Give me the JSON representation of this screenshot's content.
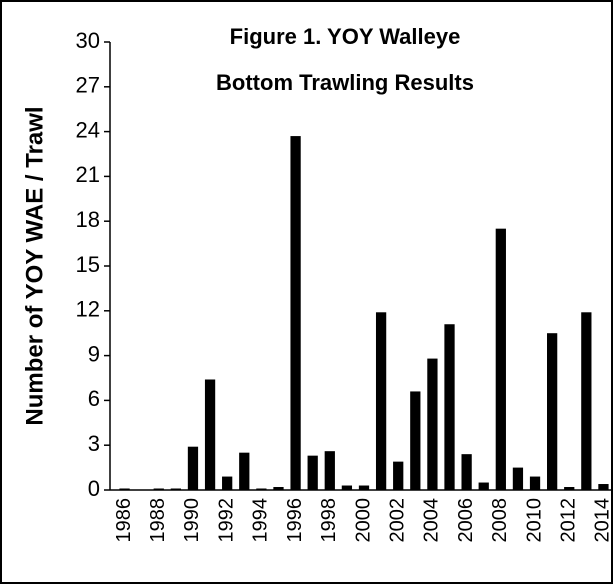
{
  "chart_data": {
    "type": "bar",
    "title": [
      "Figure 1.  YOY Walleye",
      "Bottom Trawling Results"
    ],
    "y_label": "Number of YOY WAE / Trawl",
    "categories": [
      "1986",
      null,
      "1988",
      null,
      "1990",
      null,
      "1992",
      null,
      "1994",
      null,
      "1996",
      null,
      "1998",
      null,
      "2000",
      null,
      "2002",
      null,
      "2004",
      null,
      "2006",
      null,
      "2008",
      null,
      "2010",
      null,
      "2012",
      null,
      "2014"
    ],
    "values": [
      0.1,
      0,
      0.1,
      0.1,
      2.9,
      7.4,
      0.9,
      2.5,
      0.1,
      0.2,
      23.7,
      2.3,
      2.6,
      0.3,
      0.3,
      11.9,
      1.9,
      6.6,
      8.8,
      11.1,
      2.4,
      0.5,
      17.5,
      1.5,
      0.9,
      10.5,
      0.2,
      11.9,
      0.4
    ],
    "color": "#000000",
    "ylim": [
      0,
      30
    ],
    "yticks": [
      0,
      3,
      6,
      9,
      12,
      15,
      18,
      21,
      24,
      27,
      30
    ],
    "grid": false
  }
}
